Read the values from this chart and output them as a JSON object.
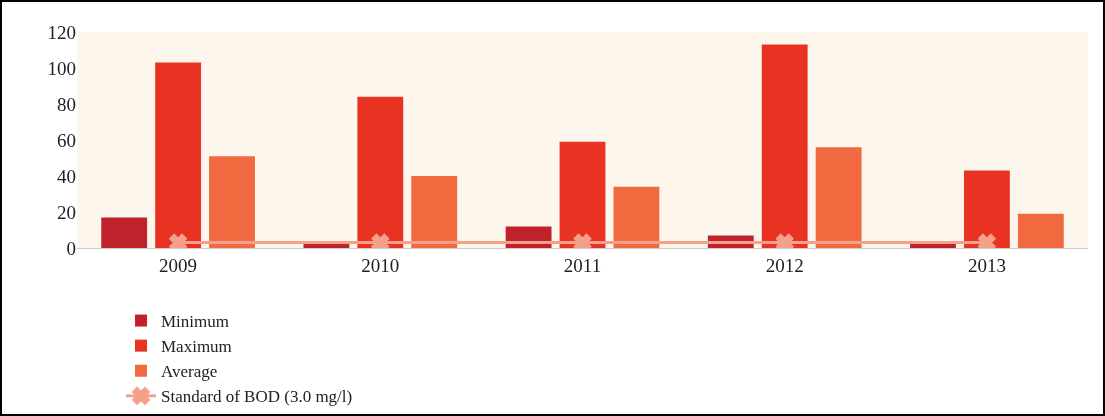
{
  "chart_data": {
    "type": "bar",
    "categories": [
      "2009",
      "2010",
      "2011",
      "2012",
      "2013"
    ],
    "series": [
      {
        "name": "Minimum",
        "color": "#c0222b",
        "values": [
          17,
          3,
          12,
          7,
          3
        ]
      },
      {
        "name": "Maximum",
        "color": "#e83222",
        "values": [
          103,
          84,
          59,
          113,
          43
        ]
      },
      {
        "name": "Average",
        "color": "#f0693f",
        "values": [
          51,
          40,
          34,
          56,
          19
        ]
      },
      {
        "name": "Standard of BOD (3.0 mg/l)",
        "type": "line",
        "color": "#f4a08a",
        "values": [
          3,
          3,
          3,
          3,
          3
        ],
        "marker": "cross"
      }
    ],
    "ylim": [
      0,
      120
    ],
    "yticks": [
      0,
      20,
      40,
      60,
      80,
      100,
      120
    ],
    "grid": false,
    "legend": "bottom"
  }
}
